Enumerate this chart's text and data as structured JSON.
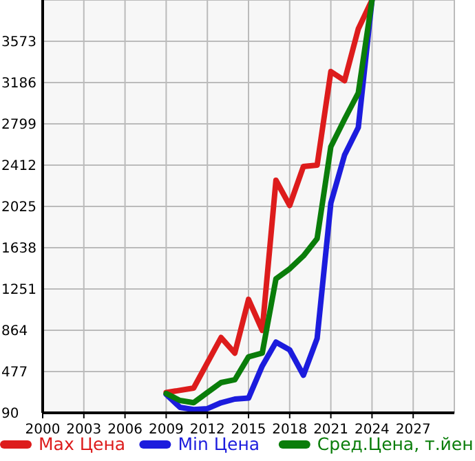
{
  "chart_data": {
    "type": "line",
    "x": [
      2009,
      2010,
      2011,
      2012,
      2013,
      2014,
      2015,
      2016,
      2017,
      2018,
      2019,
      2020,
      2021,
      2022,
      2023,
      2024
    ],
    "series": [
      {
        "name": "Max Цена",
        "color": "#dd1c1c",
        "x": [
          2009,
          2011,
          2013,
          2014,
          2015,
          2016,
          2017,
          2018,
          2019,
          2020,
          2021,
          2022,
          2023,
          2024
        ],
        "values": [
          280,
          322,
          796,
          650,
          1153,
          864,
          2270,
          2034,
          2399,
          2412,
          3289,
          3204,
          3689,
          3960
        ]
      },
      {
        "name": "Min Цена",
        "color": "#1c1cdd",
        "values": [
          263,
          142,
          121,
          129,
          185,
          219,
          228,
          529,
          753,
          680,
          443,
          787,
          2056,
          2507,
          2765,
          3960
        ]
      },
      {
        "name": "Сред.Цена, т.йен",
        "color": "#0a7d0a",
        "values": [
          271,
          206,
          185,
          280,
          374,
          400,
          615,
          650,
          1346,
          1440,
          1561,
          1724,
          2585,
          2843,
          3088,
          3960
        ]
      }
    ],
    "xlim": [
      2000,
      2030
    ],
    "xticks": [
      2000,
      2003,
      2006,
      2009,
      2012,
      2015,
      2018,
      2021,
      2024,
      2027
    ],
    "ylim": [
      90,
      3960
    ],
    "yticks": [
      90,
      477,
      864,
      1251,
      1638,
      2025,
      2412,
      2799,
      3186,
      3573
    ],
    "grid": true,
    "legend": "bottom",
    "marker": "none",
    "line_style": "solid"
  }
}
